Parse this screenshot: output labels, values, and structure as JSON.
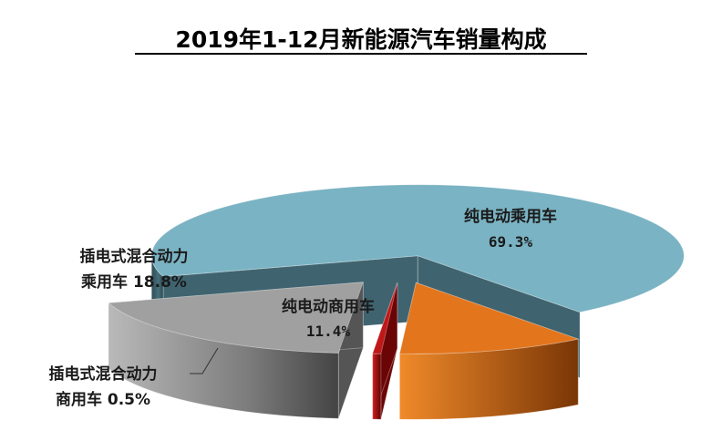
{
  "chart_data": {
    "type": "pie",
    "title": "2019年1-12月新能源汽车销量构成",
    "slices": [
      {
        "label": "纯电动乘用车",
        "value": 69.3,
        "display": "69.3%",
        "color": "#7ab3c3",
        "side_color": "#3f6470"
      },
      {
        "label": "纯电动商用车",
        "value": 11.4,
        "display": "11.4%",
        "color": "#e3751c",
        "side_color": "#8a3e08"
      },
      {
        "label": "插电式混合动力商用车",
        "value": 0.5,
        "display": "0.5%",
        "color": "#c01818",
        "side_color": "#6b0505"
      },
      {
        "label": "插电式混合动力乘用车",
        "value": 18.8,
        "display": "18.8%",
        "color": "#a0a0a0",
        "side_color": "#555555"
      }
    ]
  },
  "labels": {
    "bev_passenger_name": "纯电动乘用车",
    "bev_passenger_value": "69.3%",
    "bev_commercial_name": "纯电动商用车",
    "bev_commercial_value": "11.4%",
    "phev_passenger_line1": "插电式混合动力",
    "phev_passenger_line2": "乘用车 18.8%",
    "phev_commercial_line1": "插电式混合动力",
    "phev_commercial_line2": "商用车 0.5%"
  }
}
